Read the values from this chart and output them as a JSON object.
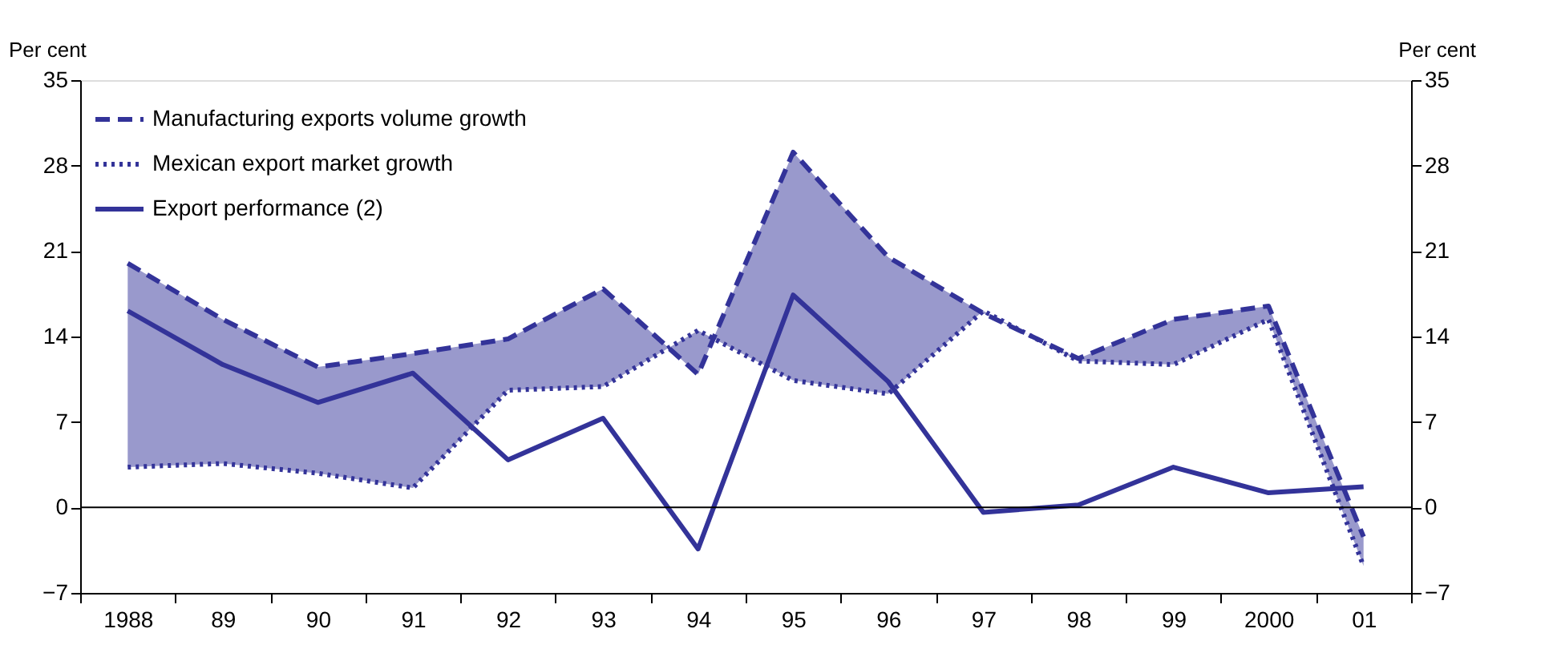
{
  "chart_data": {
    "type": "line",
    "categories": [
      "1988",
      "89",
      "90",
      "91",
      "92",
      "93",
      "94",
      "95",
      "96",
      "97",
      "98",
      "99",
      "2000",
      "01"
    ],
    "ylabel": "Per cent",
    "y2label": "Per cent",
    "ylim": [
      -7,
      35
    ],
    "yticks": [
      -7,
      0,
      7,
      14,
      21,
      28,
      35
    ],
    "y2lim": [
      -7,
      35
    ],
    "y2ticks": [
      -7,
      0,
      7,
      14,
      21,
      28,
      35
    ],
    "grid": false,
    "legend": "top left",
    "ref_lines": [
      {
        "axis": "y",
        "value": 0,
        "color": "#000000"
      }
    ],
    "series": [
      {
        "name": "Manufacturing exports volume growth",
        "color": "#333399",
        "line_style": "dashed",
        "values": [
          20.0,
          15.4,
          11.5,
          12.6,
          13.8,
          17.9,
          10.9,
          29.1,
          20.5,
          15.9,
          12.2,
          15.4,
          16.5,
          -2.4
        ],
        "lower": [
          3.3,
          3.6,
          2.8,
          1.6,
          9.6,
          9.9,
          14.5,
          10.4,
          9.3,
          16.1,
          12.0,
          11.7,
          15.4,
          -4.8
        ],
        "upper": [
          20.0,
          15.4,
          11.5,
          12.6,
          13.8,
          17.9,
          10.9,
          29.1,
          20.5,
          15.9,
          12.2,
          15.4,
          16.5,
          -2.4
        ]
      },
      {
        "name": "Mexican export market growth",
        "color": "#333399",
        "line_style": "dotted",
        "values": [
          3.3,
          3.6,
          2.8,
          1.6,
          9.6,
          9.9,
          14.5,
          10.4,
          9.3,
          16.1,
          12.0,
          11.7,
          15.4,
          -4.8
        ]
      },
      {
        "name": "Export performance (2)",
        "color": "#333399",
        "line_style": "solid",
        "values": [
          16.1,
          11.7,
          8.6,
          11.0,
          3.9,
          7.3,
          -3.4,
          17.4,
          10.3,
          -0.4,
          0.2,
          3.3,
          1.2,
          1.7
        ]
      }
    ]
  }
}
